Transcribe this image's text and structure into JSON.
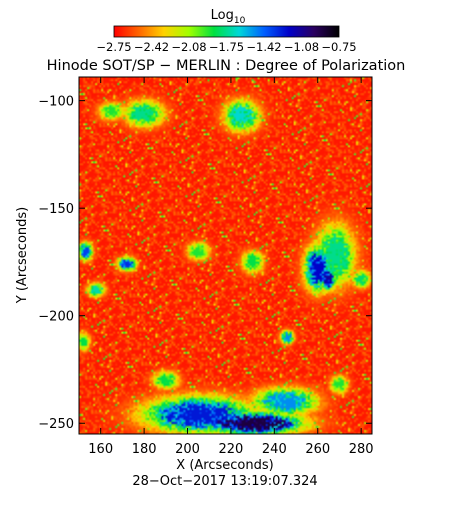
{
  "chart_data": {
    "type": "heatmap",
    "title": "Hinode SOT/SP − MERLIN : Degree of Polarization",
    "xlabel": "X (Arcseconds)",
    "ylabel": "Y (Arcseconds)",
    "timestamp": "28−Oct−2017 13:19:07.324",
    "xlim": [
      150,
      285
    ],
    "ylim": [
      -255,
      -89
    ],
    "x_ticks": [
      {
        "value": 160,
        "label": "160"
      },
      {
        "value": 180,
        "label": "180"
      },
      {
        "value": 200,
        "label": "200"
      },
      {
        "value": 220,
        "label": "220"
      },
      {
        "value": 240,
        "label": "240"
      },
      {
        "value": 260,
        "label": "260"
      },
      {
        "value": 280,
        "label": "280"
      }
    ],
    "y_ticks": [
      {
        "value": -100,
        "label": "−100"
      },
      {
        "value": -150,
        "label": "−150"
      },
      {
        "value": -200,
        "label": "−200"
      },
      {
        "value": -250,
        "label": "−250"
      }
    ],
    "colorbar": {
      "label": "Log",
      "label_subscript": "10",
      "range": [
        -2.75,
        -0.75
      ],
      "tick_labels": [
        "−2.75",
        "−2.42",
        "−2.08",
        "−1.75",
        "−1.42",
        "−1.08",
        "−0.75"
      ],
      "colors": [
        "#ff0000",
        "#ff6600",
        "#ffd200",
        "#a0ff00",
        "#00e040",
        "#00d8d8",
        "#0060ff",
        "#0000c8",
        "#2a0060",
        "#000000"
      ]
    },
    "background_level": -2.7,
    "features": [
      {
        "x": 230,
        "y": -250,
        "rx": 22,
        "ry": 5,
        "level": -0.9
      },
      {
        "x": 205,
        "y": -246,
        "rx": 24,
        "ry": 8,
        "level": -1.25
      },
      {
        "x": 245,
        "y": -240,
        "rx": 14,
        "ry": 6,
        "level": -1.5
      },
      {
        "x": 260,
        "y": -178,
        "rx": 6,
        "ry": 10,
        "level": -1.2
      },
      {
        "x": 265,
        "y": -183,
        "rx": 3,
        "ry": 5,
        "level": -1.1
      },
      {
        "x": 268,
        "y": -172,
        "rx": 9,
        "ry": 14,
        "level": -1.75
      },
      {
        "x": 172,
        "y": -176,
        "rx": 4,
        "ry": 3,
        "level": -1.3
      },
      {
        "x": 153,
        "y": -170,
        "rx": 3,
        "ry": 4,
        "level": -1.35
      },
      {
        "x": 180,
        "y": -106,
        "rx": 9,
        "ry": 6,
        "level": -1.75
      },
      {
        "x": 225,
        "y": -107,
        "rx": 8,
        "ry": 7,
        "level": -1.65
      },
      {
        "x": 165,
        "y": -105,
        "rx": 6,
        "ry": 4,
        "level": -1.9
      },
      {
        "x": 230,
        "y": -175,
        "rx": 5,
        "ry": 5,
        "level": -1.85
      },
      {
        "x": 246,
        "y": -210,
        "rx": 3,
        "ry": 3,
        "level": -1.5
      },
      {
        "x": 158,
        "y": -188,
        "rx": 4,
        "ry": 3,
        "level": -1.7
      },
      {
        "x": 205,
        "y": -170,
        "rx": 5,
        "ry": 4,
        "level": -1.9
      },
      {
        "x": 280,
        "y": -183,
        "rx": 4,
        "ry": 4,
        "level": -1.8
      },
      {
        "x": 152,
        "y": -212,
        "rx": 3,
        "ry": 4,
        "level": -1.85
      },
      {
        "x": 190,
        "y": -230,
        "rx": 6,
        "ry": 4,
        "level": -1.85
      },
      {
        "x": 270,
        "y": -232,
        "rx": 4,
        "ry": 4,
        "level": -1.9
      }
    ]
  }
}
